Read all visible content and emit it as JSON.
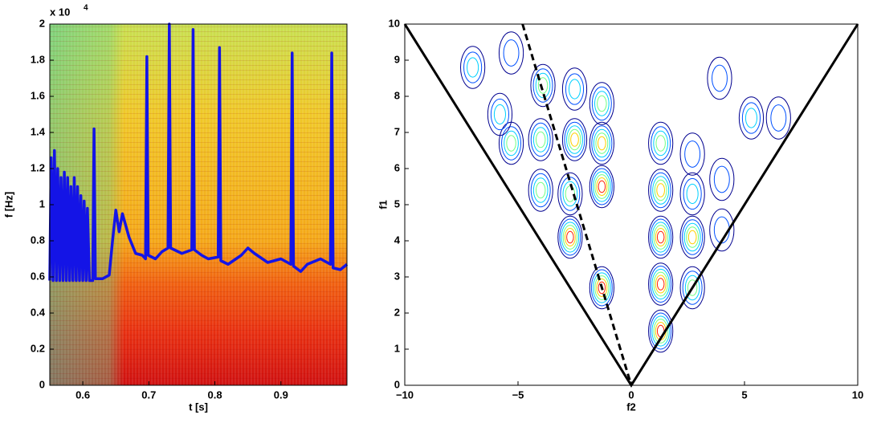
{
  "chart_data": [
    {
      "type": "line",
      "xlabel": "t [s]",
      "ylabel": "f [Hz]",
      "y_multiplier": "x 10",
      "y_multiplier_exponent": "4",
      "xlim": [
        0.55,
        1.0
      ],
      "xticks": [
        0.6,
        0.7,
        0.8,
        0.9
      ],
      "ylim": [
        0,
        20000
      ],
      "yticks": [
        {
          "value": 0,
          "label": "0"
        },
        {
          "value": 2000,
          "label": "0.2"
        },
        {
          "value": 4000,
          "label": "0.4"
        },
        {
          "value": 6000,
          "label": "0.6"
        },
        {
          "value": 8000,
          "label": "0.8"
        },
        {
          "value": 10000,
          "label": "1"
        },
        {
          "value": 12000,
          "label": "1.2"
        },
        {
          "value": 14000,
          "label": "1.4"
        },
        {
          "value": 16000,
          "label": "1.6"
        },
        {
          "value": 18000,
          "label": "1.8"
        },
        {
          "value": 20000,
          "label": "2"
        }
      ],
      "series": [
        {
          "color": "#1414e6",
          "x": [
            0.55,
            0.552,
            0.555,
            0.557,
            0.56,
            0.562,
            0.565,
            0.567,
            0.57,
            0.572,
            0.575,
            0.577,
            0.58,
            0.582,
            0.585,
            0.587,
            0.59,
            0.592,
            0.595,
            0.597,
            0.6,
            0.602,
            0.605,
            0.607,
            0.61,
            0.615,
            0.617,
            0.619,
            0.63,
            0.64,
            0.645,
            0.65,
            0.655,
            0.66,
            0.67,
            0.68,
            0.69,
            0.695,
            0.697,
            0.699,
            0.71,
            0.72,
            0.729,
            0.731,
            0.733,
            0.75,
            0.765,
            0.767,
            0.769,
            0.78,
            0.79,
            0.805,
            0.807,
            0.809,
            0.82,
            0.84,
            0.85,
            0.86,
            0.88,
            0.9,
            0.915,
            0.917,
            0.919,
            0.93,
            0.94,
            0.96,
            0.975,
            0.977,
            0.979,
            0.99,
            1.0
          ],
          "values": [
            5800,
            12600,
            5800,
            13000,
            5800,
            12000,
            5800,
            11500,
            5800,
            11800,
            5800,
            11500,
            5800,
            11000,
            5800,
            11500,
            5800,
            11000,
            5800,
            10500,
            5800,
            10200,
            5800,
            9800,
            5800,
            5800,
            14200,
            5900,
            5900,
            6100,
            8000,
            9700,
            8500,
            9500,
            8200,
            7300,
            7200,
            7000,
            18200,
            7200,
            7000,
            7400,
            7600,
            20000,
            7600,
            7300,
            7500,
            19700,
            7500,
            7200,
            7000,
            7100,
            18700,
            6900,
            6700,
            7200,
            7600,
            7300,
            6800,
            7000,
            6700,
            18400,
            6600,
            6300,
            6700,
            7000,
            6700,
            18400,
            6500,
            6400,
            6700
          ]
        }
      ]
    },
    {
      "type": "contour",
      "xlabel": "f2",
      "ylabel": "f1",
      "xlim": [
        -10,
        10
      ],
      "xticks": [
        {
          "value": -10,
          "label": "−10"
        },
        {
          "value": -5,
          "label": "−5"
        },
        0,
        5,
        10
      ],
      "ylim": [
        0,
        10
      ],
      "yticks": [
        0,
        1,
        2,
        3,
        4,
        5,
        6,
        7,
        8,
        9,
        10
      ],
      "level_colors": [
        "#00008f",
        "#0050ff",
        "#00d0ff",
        "#70ff80",
        "#ffd000",
        "#ff2000"
      ],
      "contours": [
        {
          "x": -1.3,
          "y": 2.7,
          "level": 6
        },
        {
          "x": -1.3,
          "y": 5.5,
          "level": 6
        },
        {
          "x": -1.3,
          "y": 6.7,
          "level": 5
        },
        {
          "x": -1.3,
          "y": 7.8,
          "level": 4
        },
        {
          "x": -2.7,
          "y": 4.1,
          "level": 6
        },
        {
          "x": -2.7,
          "y": 5.3,
          "level": 4
        },
        {
          "x": -2.5,
          "y": 6.8,
          "level": 5
        },
        {
          "x": -2.5,
          "y": 8.2,
          "level": 3
        },
        {
          "x": -4,
          "y": 5.4,
          "level": 4
        },
        {
          "x": -4,
          "y": 6.8,
          "level": 4
        },
        {
          "x": -3.9,
          "y": 8.3,
          "level": 4
        },
        {
          "x": -5.3,
          "y": 6.7,
          "level": 4
        },
        {
          "x": -5.8,
          "y": 7.5,
          "level": 3
        },
        {
          "x": -7,
          "y": 8.8,
          "level": 3
        },
        {
          "x": -5.3,
          "y": 9.2,
          "level": 2
        },
        {
          "x": 1.3,
          "y": 1.5,
          "level": 6
        },
        {
          "x": 1.3,
          "y": 2.8,
          "level": 6
        },
        {
          "x": 1.3,
          "y": 4.1,
          "level": 6
        },
        {
          "x": 1.3,
          "y": 5.4,
          "level": 5
        },
        {
          "x": 1.3,
          "y": 6.7,
          "level": 4
        },
        {
          "x": 2.7,
          "y": 2.7,
          "level": 4
        },
        {
          "x": 2.7,
          "y": 4.1,
          "level": 5
        },
        {
          "x": 2.7,
          "y": 5.3,
          "level": 3
        },
        {
          "x": 2.7,
          "y": 6.4,
          "level": 2
        },
        {
          "x": 4,
          "y": 4.3,
          "level": 2
        },
        {
          "x": 4,
          "y": 5.7,
          "level": 2
        },
        {
          "x": 5.3,
          "y": 7.4,
          "level": 3
        },
        {
          "x": 6.5,
          "y": 7.4,
          "level": 2
        },
        {
          "x": 3.9,
          "y": 8.5,
          "level": 2
        }
      ],
      "lines": [
        {
          "x": [
            -10,
            0,
            10
          ],
          "y": [
            10,
            0,
            10
          ],
          "color": "#000000",
          "dashed": false
        },
        {
          "x": [
            -4.8,
            0
          ],
          "y": [
            10,
            0
          ],
          "color": "#000000",
          "dashed": true
        }
      ]
    }
  ]
}
